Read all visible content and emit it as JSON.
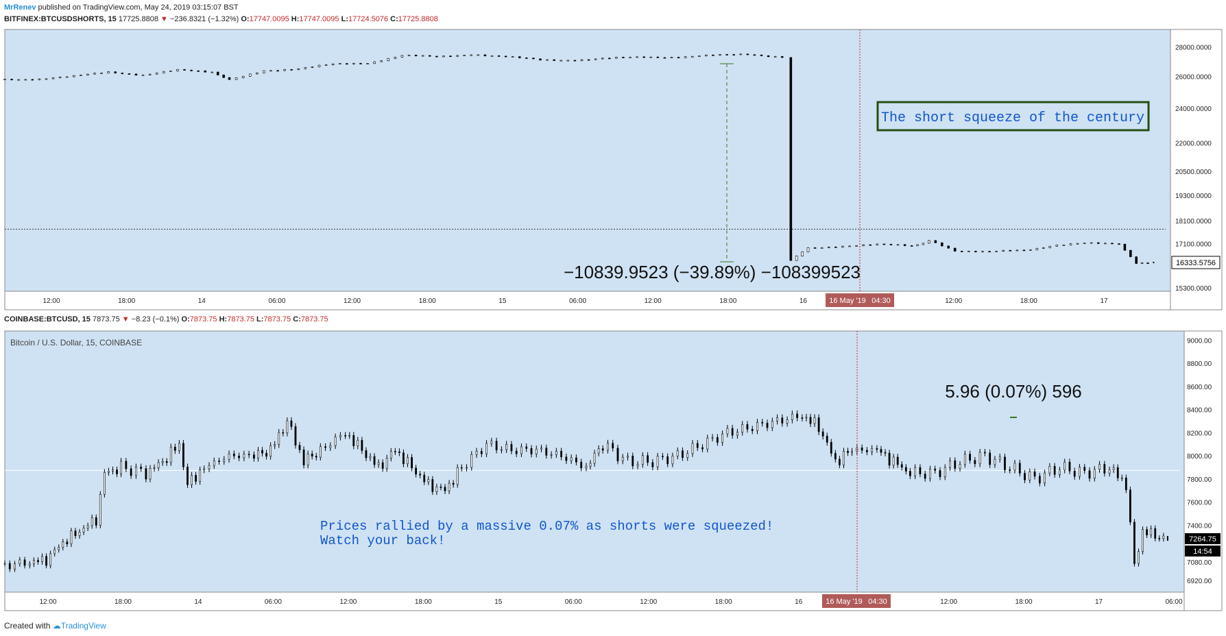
{
  "header": {
    "author": "MrRenev",
    "published_text": "published on TradingView.com, May 24, 2019 03:15:07 BST"
  },
  "chart1_info": {
    "symbol": "BITFINEX:BTCUSDSHORTS, 15",
    "last": "17725.8808",
    "arrow": "▼",
    "change": "−236.8321 (−1.32%)",
    "o_label": "O:",
    "o": "17747.0095",
    "h_label": "H:",
    "h": "17747.0095",
    "l_label": "L:",
    "l": "17724.5076",
    "c_label": "C:",
    "c": "17725.8808"
  },
  "chart2_info": {
    "symbol": "COINBASE:BTCUSD, 15",
    "last": "7873.75",
    "arrow": "▼",
    "change": "−8.23 (−0.1%)",
    "o_label": "O:",
    "o": "7873.75",
    "h_label": "H:",
    "h": "7873.75",
    "l_label": "L:",
    "l": "7873.75",
    "c_label": "C:",
    "c": "7873.75"
  },
  "colors": {
    "plot_bg": "#cfe2f3",
    "candle": "#000000",
    "red": "#c62828",
    "annotation_blue": "#1155cc",
    "box_border": "#274e13",
    "measure_green": "#38761d",
    "time_badge": "#b05a5a"
  },
  "footer": {
    "created_with": "Created with",
    "brand": "TradingView"
  },
  "chart_data": [
    {
      "type": "candlestick",
      "name": "BITFINEX:BTCUSDSHORTS, 15",
      "scale": "log",
      "y_ticks": [
        "28000.0000",
        "26000.0000",
        "24000.0000",
        "22000.0000",
        "20500.0000",
        "19300.0000",
        "18100.0000",
        "17100.0000",
        "15300.0000"
      ],
      "x_ticks": [
        "12:00",
        "18:00",
        "14",
        "06:00",
        "12:00",
        "18:00",
        "15",
        "06:00",
        "12:00",
        "18:00",
        "16",
        "04:30",
        "12:00",
        "18:00",
        "17"
      ],
      "crosshair_date": "16 May '19",
      "crosshair_time": "04:30",
      "last_price_label": "16333.5756",
      "price_line": 17725.8808,
      "annotations": {
        "box_text": "The short squeeze of the century",
        "measure_text": "−10839.9523 (−39.89%) −108399523"
      },
      "series": [
        {
          "t": 0,
          "v": 25800
        },
        {
          "t": 4,
          "v": 25850
        },
        {
          "t": 8,
          "v": 26000
        },
        {
          "t": 12,
          "v": 26300
        },
        {
          "t": 16,
          "v": 26100
        },
        {
          "t": 20,
          "v": 26400
        },
        {
          "t": 24,
          "v": 26300
        },
        {
          "t": 26,
          "v": 25750
        },
        {
          "t": 30,
          "v": 26400
        },
        {
          "t": 34,
          "v": 26500
        },
        {
          "t": 38,
          "v": 26800
        },
        {
          "t": 42,
          "v": 26900
        },
        {
          "t": 46,
          "v": 27400
        },
        {
          "t": 50,
          "v": 27300
        },
        {
          "t": 54,
          "v": 27500
        },
        {
          "t": 58,
          "v": 27300
        },
        {
          "t": 62,
          "v": 27100
        },
        {
          "t": 66,
          "v": 27100
        },
        {
          "t": 70,
          "v": 27200
        },
        {
          "t": 74,
          "v": 27300
        },
        {
          "t": 78,
          "v": 27300
        },
        {
          "t": 82,
          "v": 27400
        },
        {
          "t": 86,
          "v": 27500
        },
        {
          "t": 90,
          "v": 27300
        },
        {
          "t": 91,
          "v": 16400
        },
        {
          "t": 93,
          "v": 16900
        },
        {
          "t": 97,
          "v": 17000
        },
        {
          "t": 101,
          "v": 17050
        },
        {
          "t": 105,
          "v": 17000
        },
        {
          "t": 107,
          "v": 17200
        },
        {
          "t": 110,
          "v": 16800
        },
        {
          "t": 114,
          "v": 16750
        },
        {
          "t": 118,
          "v": 16800
        },
        {
          "t": 121,
          "v": 17000
        },
        {
          "t": 125,
          "v": 17100
        },
        {
          "t": 129,
          "v": 17100
        },
        {
          "t": 131,
          "v": 16250
        },
        {
          "t": 133,
          "v": 16333.5756
        }
      ]
    },
    {
      "type": "candlestick",
      "name": "Bitcoin / U.S. Dollar, 15, COINBASE",
      "scale": "linear",
      "y_ticks": [
        "9000.00",
        "8800.00",
        "8600.00",
        "8400.00",
        "8200.00",
        "8000.00",
        "7800.00",
        "7600.00",
        "7400.00",
        "7080.00",
        "6920.00"
      ],
      "x_ticks": [
        "12:00",
        "18:00",
        "14",
        "06:00",
        "12:00",
        "18:00",
        "15",
        "06:00",
        "12:00",
        "18:00",
        "16",
        "04:30",
        "12:00",
        "18:00",
        "17",
        "06:00"
      ],
      "crosshair_date": "16 May '19",
      "crosshair_time": "04:30",
      "last_price_label": "7264.75",
      "countdown_label": "14:54",
      "price_line": 7873.75,
      "annotations": {
        "measure_text": "5.96 (0.07%) 596",
        "note_line1": "Prices rallied by a massive 0.07% as shorts were squeezed!",
        "note_line2": "Watch your back!"
      },
      "series": [
        {
          "t": 0,
          "v": 7050
        },
        {
          "t": 3,
          "v": 7080
        },
        {
          "t": 5,
          "v": 7100
        },
        {
          "t": 7,
          "v": 7250
        },
        {
          "t": 9,
          "v": 7350
        },
        {
          "t": 11,
          "v": 7450
        },
        {
          "t": 12,
          "v": 7850
        },
        {
          "t": 14,
          "v": 7900
        },
        {
          "t": 17,
          "v": 7850
        },
        {
          "t": 19,
          "v": 7950
        },
        {
          "t": 21,
          "v": 8100
        },
        {
          "t": 22,
          "v": 7750
        },
        {
          "t": 24,
          "v": 7900
        },
        {
          "t": 27,
          "v": 8000
        },
        {
          "t": 30,
          "v": 8000
        },
        {
          "t": 32,
          "v": 8050
        },
        {
          "t": 34,
          "v": 8300
        },
        {
          "t": 36,
          "v": 7950
        },
        {
          "t": 38,
          "v": 8050
        },
        {
          "t": 41,
          "v": 8200
        },
        {
          "t": 43,
          "v": 8050
        },
        {
          "t": 45,
          "v": 7900
        },
        {
          "t": 47,
          "v": 8050
        },
        {
          "t": 49,
          "v": 7900
        },
        {
          "t": 51,
          "v": 7750
        },
        {
          "t": 53,
          "v": 7700
        },
        {
          "t": 55,
          "v": 7900
        },
        {
          "t": 58,
          "v": 8100
        },
        {
          "t": 61,
          "v": 8050
        },
        {
          "t": 64,
          "v": 8050
        },
        {
          "t": 67,
          "v": 8000
        },
        {
          "t": 70,
          "v": 7900
        },
        {
          "t": 72,
          "v": 8100
        },
        {
          "t": 75,
          "v": 7950
        },
        {
          "t": 78,
          "v": 7950
        },
        {
          "t": 81,
          "v": 8000
        },
        {
          "t": 84,
          "v": 8100
        },
        {
          "t": 87,
          "v": 8200
        },
        {
          "t": 90,
          "v": 8250
        },
        {
          "t": 93,
          "v": 8300
        },
        {
          "t": 96,
          "v": 8350
        },
        {
          "t": 98,
          "v": 8250
        },
        {
          "t": 100,
          "v": 7950
        },
        {
          "t": 102,
          "v": 8050
        },
        {
          "t": 105,
          "v": 8050
        },
        {
          "t": 107,
          "v": 7950
        },
        {
          "t": 109,
          "v": 7850
        },
        {
          "t": 112,
          "v": 7850
        },
        {
          "t": 115,
          "v": 7950
        },
        {
          "t": 118,
          "v": 8000
        },
        {
          "t": 121,
          "v": 7900
        },
        {
          "t": 124,
          "v": 7800
        },
        {
          "t": 127,
          "v": 7900
        },
        {
          "t": 130,
          "v": 7850
        },
        {
          "t": 133,
          "v": 7900
        },
        {
          "t": 135,
          "v": 7750
        },
        {
          "t": 136,
          "v": 7050
        },
        {
          "t": 137,
          "v": 7350
        },
        {
          "t": 139,
          "v": 7300
        },
        {
          "t": 140,
          "v": 7264.75
        }
      ]
    }
  ]
}
